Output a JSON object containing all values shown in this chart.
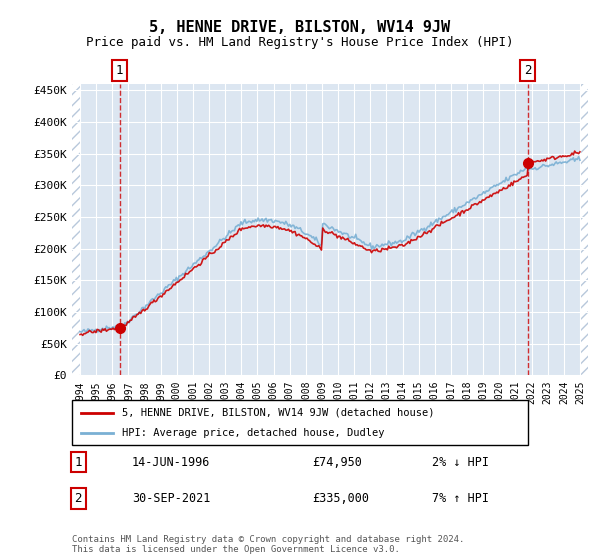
{
  "title": "5, HENNE DRIVE, BILSTON, WV14 9JW",
  "subtitle": "Price paid vs. HM Land Registry's House Price Index (HPI)",
  "ylabel_ticks": [
    "£0",
    "£50K",
    "£100K",
    "£150K",
    "£200K",
    "£250K",
    "£300K",
    "£350K",
    "£400K",
    "£450K"
  ],
  "ytick_values": [
    0,
    50000,
    100000,
    150000,
    200000,
    250000,
    300000,
    350000,
    400000,
    450000
  ],
  "ylim": [
    0,
    460000
  ],
  "xlim_start": 1993.5,
  "xlim_end": 2025.5,
  "background_color": "#ffffff",
  "plot_bg_color": "#dce6f1",
  "hatch_color": "#b8c8db",
  "grid_color": "#ffffff",
  "point1": {
    "year": 1996.45,
    "price": 74950,
    "label": "1"
  },
  "point2": {
    "year": 2021.75,
    "price": 335000,
    "label": "2"
  },
  "legend_line1": "5, HENNE DRIVE, BILSTON, WV14 9JW (detached house)",
  "legend_line2": "HPI: Average price, detached house, Dudley",
  "annotation1_date": "14-JUN-1996",
  "annotation1_price": "£74,950",
  "annotation1_hpi": "2% ↓ HPI",
  "annotation2_date": "30-SEP-2021",
  "annotation2_price": "£335,000",
  "annotation2_hpi": "7% ↑ HPI",
  "footer": "Contains HM Land Registry data © Crown copyright and database right 2024.\nThis data is licensed under the Open Government Licence v3.0.",
  "hpi_line_color": "#7ab0d4",
  "price_line_color": "#cc0000",
  "dashed_vline_color": "#cc0000"
}
